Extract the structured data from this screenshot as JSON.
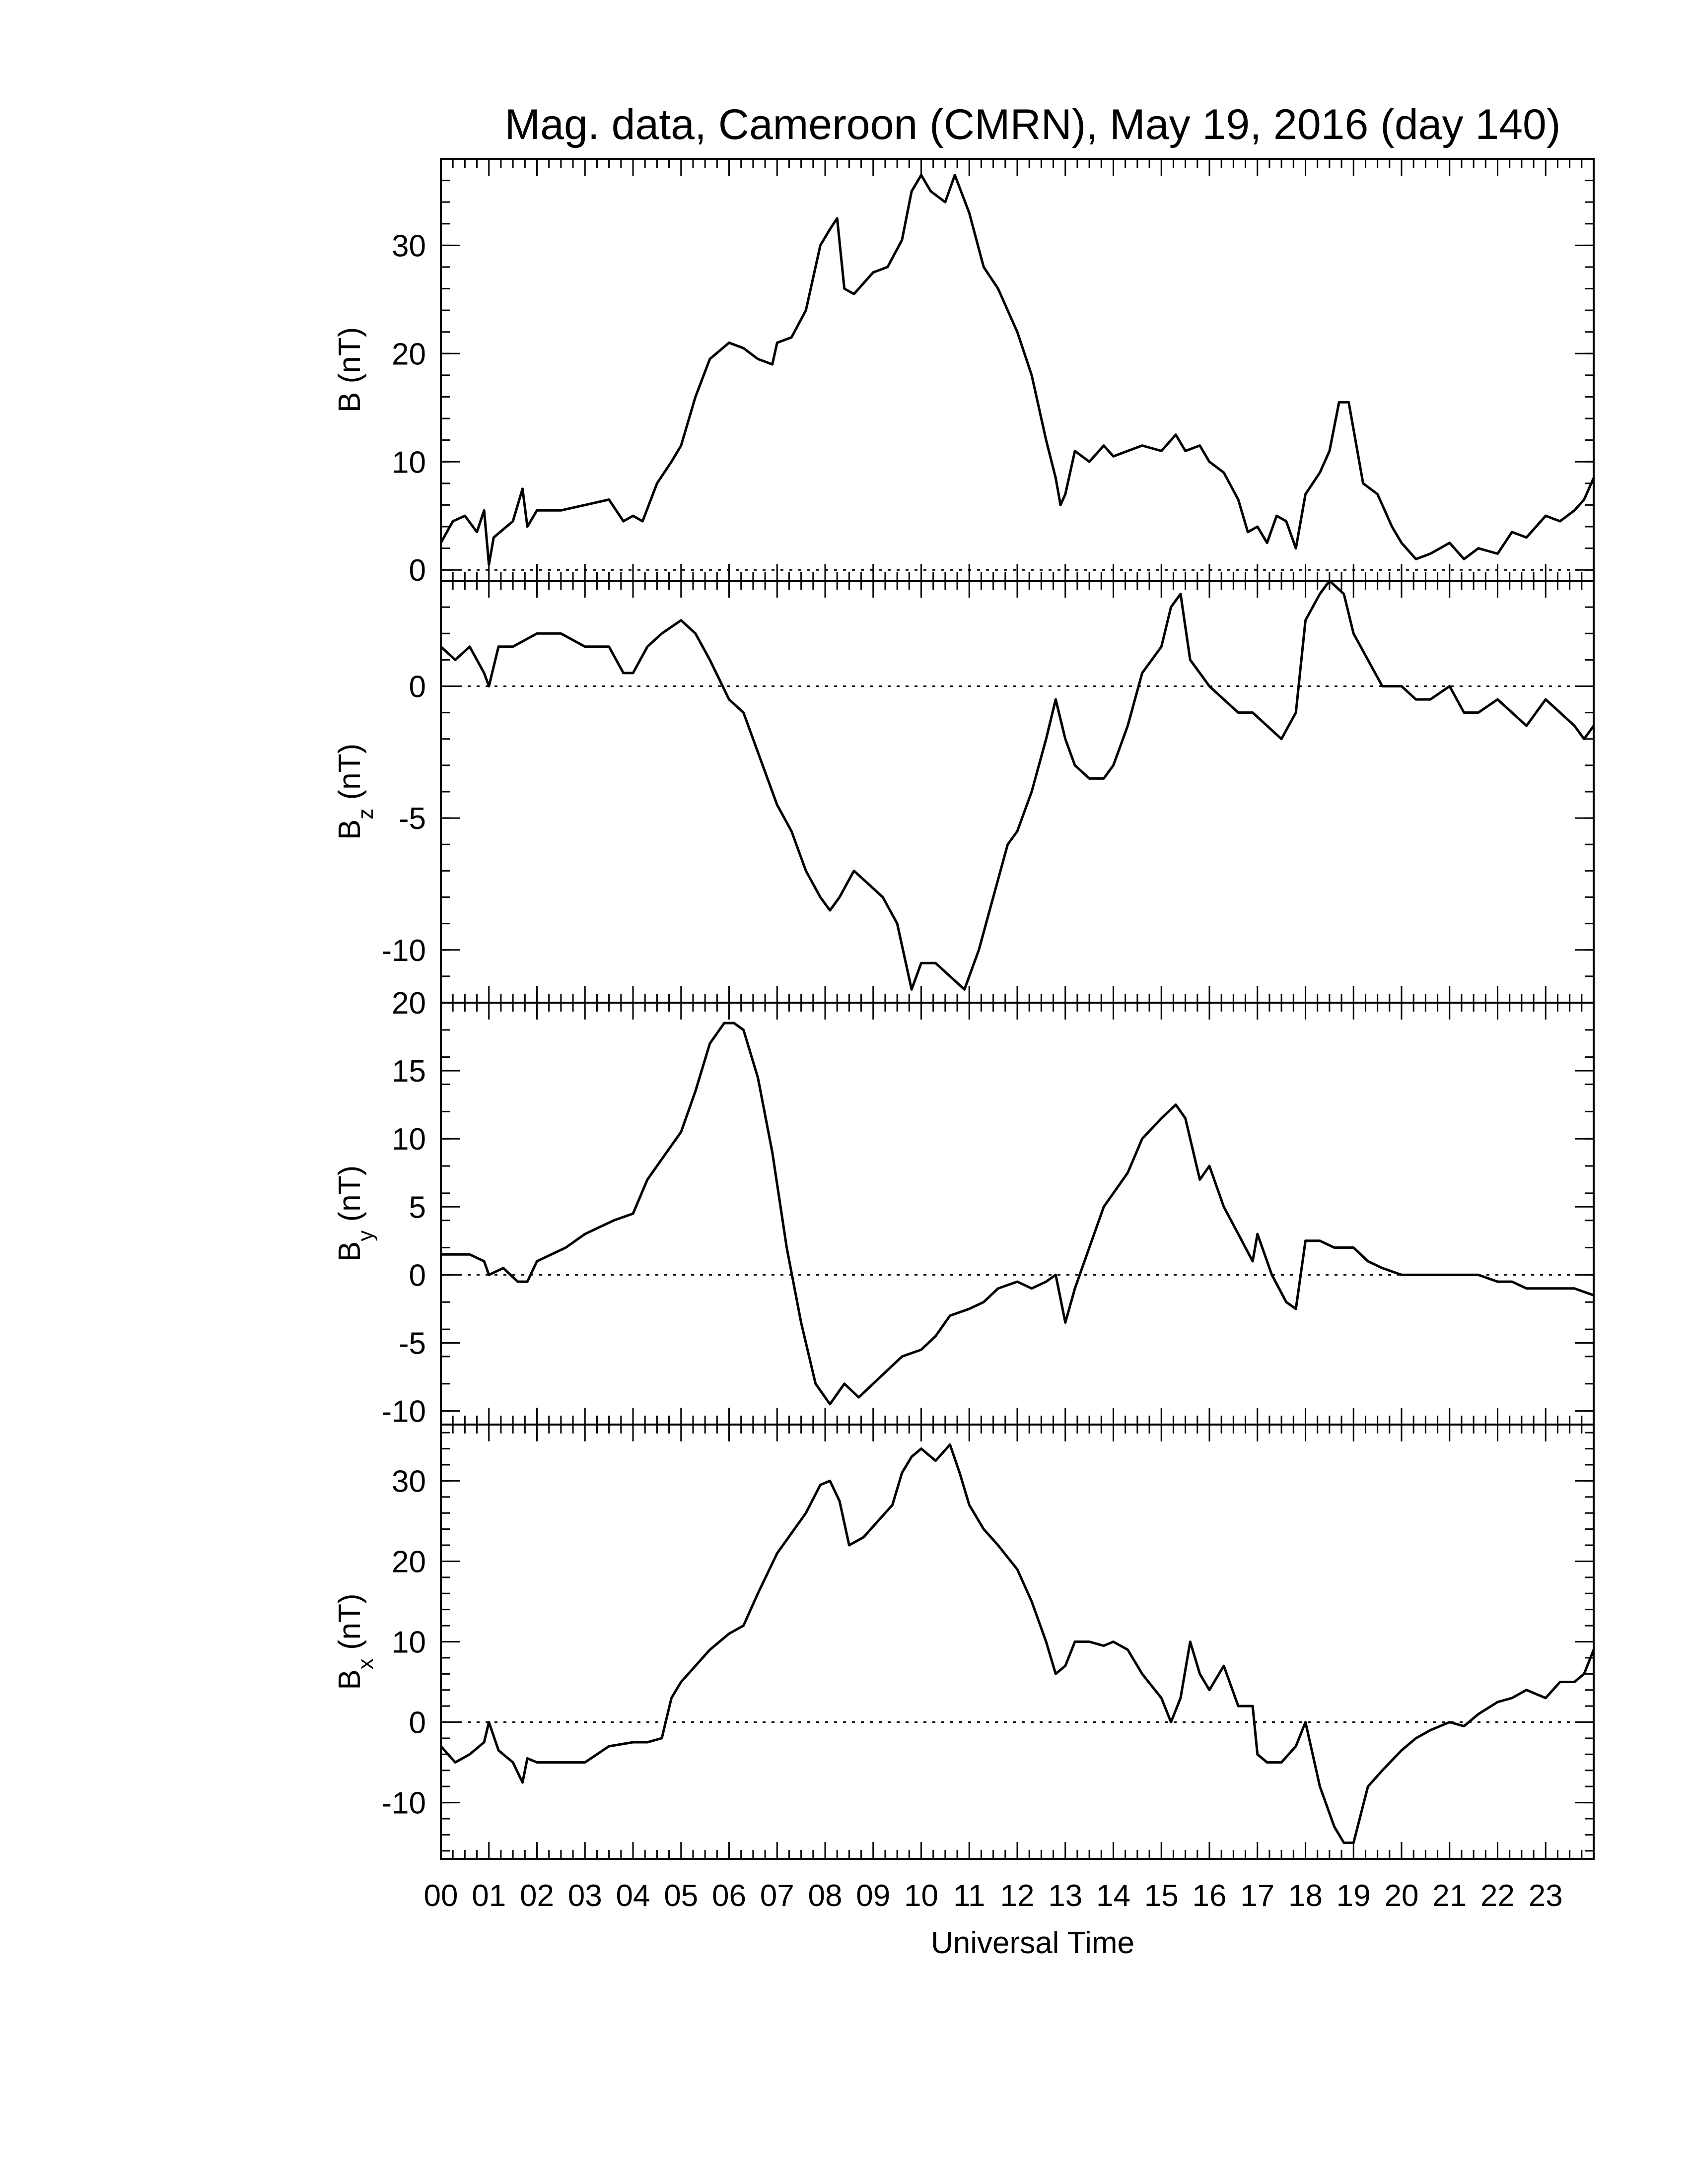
{
  "title": "Mag. data, Cameroon (CMRN), May 19, 2016 (day 140)",
  "x_axis": {
    "label": "Universal Time",
    "tick_labels": [
      "00",
      "01",
      "02",
      "03",
      "04",
      "05",
      "06",
      "07",
      "08",
      "09",
      "10",
      "11",
      "12",
      "13",
      "14",
      "15",
      "16",
      "17",
      "18",
      "19",
      "20",
      "21",
      "22",
      "23"
    ]
  },
  "colors": {
    "line": "#000000",
    "zero_line": "#000000",
    "background": "#ffffff"
  },
  "chart_data": [
    {
      "type": "line",
      "panel": "B",
      "ylabel_main": "B",
      "ylabel_sub": "",
      "ylabel_unit": "(nT)",
      "ylim": [
        -1,
        38
      ],
      "yticks": [
        0,
        10,
        20,
        30
      ],
      "ytick_labels": [
        "0",
        "10",
        "20",
        "30"
      ],
      "zero_line": true,
      "series": [
        {
          "x_hours": [
            0,
            0.25,
            0.5,
            0.75,
            0.9,
            1.0,
            1.1,
            1.5,
            1.7,
            1.8,
            2.0,
            2.5,
            3.0,
            3.5,
            3.8,
            4.0,
            4.2,
            4.5,
            4.8,
            5.0,
            5.3,
            5.6,
            6.0,
            6.3,
            6.6,
            6.9,
            7.0,
            7.3,
            7.6,
            7.9,
            8.1,
            8.25,
            8.4,
            8.6,
            9.0,
            9.3,
            9.6,
            9.8,
            10.0,
            10.2,
            10.5,
            10.7,
            11.0,
            11.3,
            11.6,
            12.0,
            12.3,
            12.6,
            12.8,
            12.9,
            13.0,
            13.2,
            13.5,
            13.8,
            14.0,
            14.3,
            14.6,
            15.0,
            15.3,
            15.5,
            15.8,
            16.0,
            16.3,
            16.6,
            16.8,
            17.0,
            17.2,
            17.4,
            17.6,
            17.8,
            18.0,
            18.3,
            18.5,
            18.7,
            18.9,
            19.0,
            19.2,
            19.5,
            19.8,
            20.0,
            20.3,
            20.6,
            21.0,
            21.3,
            21.6,
            22.0,
            22.3,
            22.6,
            23.0,
            23.3,
            23.6,
            23.8,
            24.0
          ],
          "values": [
            2.5,
            4.5,
            5.0,
            3.5,
            5.5,
            0.5,
            3.0,
            4.5,
            7.5,
            4.0,
            5.5,
            5.5,
            6.0,
            6.5,
            4.5,
            5.0,
            4.5,
            8.0,
            10.0,
            11.5,
            16.0,
            19.5,
            21.0,
            20.5,
            19.5,
            19.0,
            21.0,
            21.5,
            24.0,
            30.0,
            31.5,
            32.5,
            26.0,
            25.5,
            27.5,
            28.0,
            30.5,
            35.0,
            36.5,
            35.0,
            34.0,
            36.5,
            33.0,
            28.0,
            26.0,
            22.0,
            18.0,
            12.0,
            8.5,
            6.0,
            7.0,
            11.0,
            10.0,
            11.5,
            10.5,
            11.0,
            11.5,
            11.0,
            12.5,
            11.0,
            11.5,
            10.0,
            9.0,
            6.5,
            3.5,
            4.0,
            2.5,
            5.0,
            4.5,
            2.0,
            7.0,
            9.0,
            11.0,
            15.5,
            15.5,
            13.0,
            8.0,
            7.0,
            4.0,
            2.5,
            1.0,
            1.5,
            2.5,
            1.0,
            2.0,
            1.5,
            3.5,
            3.0,
            5.0,
            4.5,
            5.5,
            6.5,
            8.5
          ]
        }
      ]
    },
    {
      "type": "line",
      "panel": "Bz",
      "ylabel_main": "B",
      "ylabel_sub": "z",
      "ylabel_unit": "(nT)",
      "ylim": [
        -12,
        4
      ],
      "yticks": [
        -10,
        -5,
        0
      ],
      "ytick_labels": [
        "-10",
        "-5",
        "0"
      ],
      "zero_line": true,
      "series": [
        {
          "x_hours": [
            0,
            0.3,
            0.6,
            0.9,
            1.0,
            1.2,
            1.5,
            2.0,
            2.5,
            3.0,
            3.5,
            3.8,
            4.0,
            4.3,
            4.6,
            5.0,
            5.3,
            5.6,
            6.0,
            6.3,
            6.6,
            7.0,
            7.3,
            7.6,
            7.9,
            8.1,
            8.3,
            8.6,
            8.9,
            9.2,
            9.5,
            9.8,
            10.0,
            10.3,
            10.6,
            10.9,
            11.2,
            11.5,
            11.8,
            12.0,
            12.3,
            12.6,
            12.8,
            13.0,
            13.2,
            13.5,
            13.8,
            14.0,
            14.3,
            14.6,
            15.0,
            15.2,
            15.4,
            15.6,
            15.8,
            16.0,
            16.3,
            16.6,
            16.9,
            17.2,
            17.5,
            17.8,
            18.0,
            18.3,
            18.5,
            18.8,
            19.0,
            19.3,
            19.6,
            20.0,
            20.3,
            20.6,
            21.0,
            21.3,
            21.6,
            22.0,
            22.3,
            22.6,
            23.0,
            23.3,
            23.6,
            23.8,
            24.0
          ],
          "values": [
            1.5,
            1.0,
            1.5,
            0.5,
            0.0,
            1.5,
            1.5,
            2.0,
            2.0,
            1.5,
            1.5,
            0.5,
            0.5,
            1.5,
            2.0,
            2.5,
            2.0,
            1.0,
            -0.5,
            -1.0,
            -2.5,
            -4.5,
            -5.5,
            -7.0,
            -8.0,
            -8.5,
            -8.0,
            -7.0,
            -7.5,
            -8.0,
            -9.0,
            -11.5,
            -10.5,
            -10.5,
            -11.0,
            -11.5,
            -10.0,
            -8.0,
            -6.0,
            -5.5,
            -4.0,
            -2.0,
            -0.5,
            -2.0,
            -3.0,
            -3.5,
            -3.5,
            -3.0,
            -1.5,
            0.5,
            1.5,
            3.0,
            3.5,
            1.0,
            0.5,
            0.0,
            -0.5,
            -1.0,
            -1.0,
            -1.5,
            -2.0,
            -1.0,
            2.5,
            3.5,
            4.0,
            3.5,
            2.0,
            1.0,
            0.0,
            0.0,
            -0.5,
            -0.5,
            0.0,
            -1.0,
            -1.0,
            -0.5,
            -1.0,
            -1.5,
            -0.5,
            -1.0,
            -1.5,
            -2.0,
            -1.5
          ]
        }
      ]
    },
    {
      "type": "line",
      "panel": "By",
      "ylabel_main": "B",
      "ylabel_sub": "y",
      "ylabel_unit": "(nT)",
      "ylim": [
        -11,
        20
      ],
      "yticks": [
        -10,
        -5,
        0,
        5,
        10,
        15,
        20
      ],
      "ytick_labels": [
        "-10",
        "-5",
        "0",
        "5",
        "10",
        "15",
        "20"
      ],
      "zero_line": true,
      "series": [
        {
          "x_hours": [
            0,
            0.3,
            0.6,
            0.9,
            1.0,
            1.3,
            1.6,
            1.8,
            2.0,
            2.3,
            2.6,
            3.0,
            3.3,
            3.6,
            4.0,
            4.3,
            4.6,
            5.0,
            5.3,
            5.6,
            5.9,
            6.1,
            6.3,
            6.6,
            6.9,
            7.2,
            7.5,
            7.8,
            8.1,
            8.4,
            8.7,
            9.0,
            9.3,
            9.6,
            10.0,
            10.3,
            10.6,
            11.0,
            11.3,
            11.6,
            12.0,
            12.3,
            12.6,
            12.8,
            13.0,
            13.2,
            13.5,
            13.8,
            14.0,
            14.3,
            14.6,
            15.0,
            15.3,
            15.5,
            15.8,
            16.0,
            16.3,
            16.6,
            16.9,
            17.0,
            17.3,
            17.6,
            17.8,
            18.0,
            18.3,
            18.6,
            19.0,
            19.3,
            19.6,
            20.0,
            20.3,
            20.6,
            21.0,
            21.3,
            21.6,
            22.0,
            22.3,
            22.6,
            23.0,
            23.3,
            23.6,
            24.0
          ],
          "values": [
            1.5,
            1.5,
            1.5,
            1.0,
            0.0,
            0.5,
            -0.5,
            -0.5,
            1.0,
            1.5,
            2.0,
            3.0,
            3.5,
            4.0,
            4.5,
            7.0,
            8.5,
            10.5,
            13.5,
            17.0,
            18.5,
            18.5,
            18.0,
            14.5,
            9.0,
            2.0,
            -3.5,
            -8.0,
            -9.5,
            -8.0,
            -9.0,
            -8.0,
            -7.0,
            -6.0,
            -5.5,
            -4.5,
            -3.0,
            -2.5,
            -2.0,
            -1.0,
            -0.5,
            -1.0,
            -0.5,
            0.0,
            -3.5,
            -1.0,
            2.0,
            5.0,
            6.0,
            7.5,
            10.0,
            11.5,
            12.5,
            11.5,
            7.0,
            8.0,
            5.0,
            3.0,
            1.0,
            3.0,
            0.0,
            -2.0,
            -2.5,
            2.5,
            2.5,
            2.0,
            2.0,
            1.0,
            0.5,
            0.0,
            0.0,
            0.0,
            0.0,
            0.0,
            0.0,
            -0.5,
            -0.5,
            -1.0,
            -1.0,
            -1.0,
            -1.0,
            -1.5
          ]
        }
      ]
    },
    {
      "type": "line",
      "panel": "Bx",
      "ylabel_main": "B",
      "ylabel_sub": "x",
      "ylabel_unit": "(nT)",
      "ylim": [
        -17,
        37
      ],
      "yticks": [
        -10,
        0,
        10,
        20,
        30
      ],
      "ytick_labels": [
        "-10",
        "0",
        "10",
        "20",
        "30"
      ],
      "zero_line": true,
      "series": [
        {
          "x_hours": [
            0,
            0.3,
            0.6,
            0.9,
            1.0,
            1.2,
            1.5,
            1.7,
            1.8,
            2.0,
            2.5,
            3.0,
            3.5,
            4.0,
            4.3,
            4.6,
            4.8,
            5.0,
            5.3,
            5.6,
            6.0,
            6.3,
            6.6,
            7.0,
            7.3,
            7.6,
            7.9,
            8.1,
            8.3,
            8.5,
            8.8,
            9.1,
            9.4,
            9.6,
            9.8,
            10.0,
            10.3,
            10.6,
            10.8,
            11.0,
            11.3,
            11.6,
            12.0,
            12.3,
            12.6,
            12.8,
            13.0,
            13.2,
            13.5,
            13.8,
            14.0,
            14.3,
            14.6,
            15.0,
            15.2,
            15.4,
            15.6,
            15.8,
            16.0,
            16.3,
            16.6,
            16.9,
            17.0,
            17.2,
            17.5,
            17.8,
            18.0,
            18.3,
            18.6,
            18.8,
            19.0,
            19.3,
            19.6,
            20.0,
            20.3,
            20.6,
            21.0,
            21.3,
            21.6,
            22.0,
            22.3,
            22.6,
            23.0,
            23.3,
            23.6,
            23.8,
            24.0
          ],
          "values": [
            -3.0,
            -5.0,
            -4.0,
            -2.5,
            0.0,
            -3.5,
            -5.0,
            -7.5,
            -4.5,
            -5.0,
            -5.0,
            -5.0,
            -3.0,
            -2.5,
            -2.5,
            -2.0,
            3.0,
            5.0,
            7.0,
            9.0,
            11.0,
            12.0,
            16.0,
            21.0,
            23.5,
            26.0,
            29.5,
            30.0,
            27.5,
            22.0,
            23.0,
            25.0,
            27.0,
            31.0,
            33.0,
            34.0,
            32.5,
            34.5,
            31.0,
            27.0,
            24.0,
            22.0,
            19.0,
            15.0,
            10.0,
            6.0,
            7.0,
            10.0,
            10.0,
            9.5,
            10.0,
            9.0,
            6.0,
            3.0,
            0.0,
            3.0,
            10.0,
            6.0,
            4.0,
            7.0,
            2.0,
            2.0,
            -4.0,
            -5.0,
            -5.0,
            -3.0,
            0.0,
            -8.0,
            -13.0,
            -15.0,
            -15.0,
            -8.0,
            -6.0,
            -3.5,
            -2.0,
            -1.0,
            0.0,
            -0.5,
            1.0,
            2.5,
            3.0,
            4.0,
            3.0,
            5.0,
            5.0,
            6.0,
            9.0
          ]
        }
      ]
    }
  ]
}
